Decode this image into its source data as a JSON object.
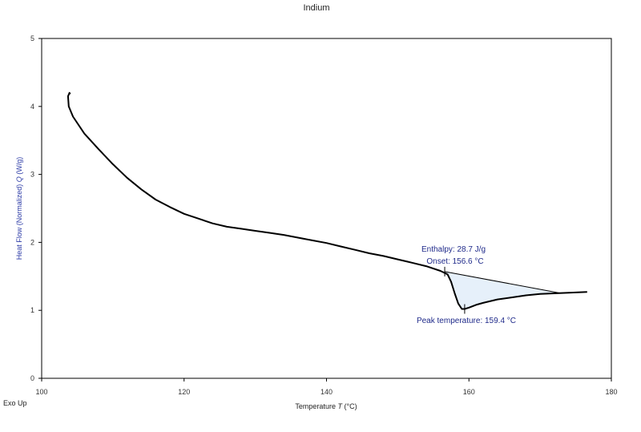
{
  "chart_data": {
    "type": "line",
    "title": "Indium",
    "xlabel": "Temperature",
    "xlabel_symbol": "T",
    "xlabel_unit": "(°C)",
    "ylabel": "Heat Flow (Normalized)",
    "ylabel_symbol": "Q",
    "ylabel_unit": "(W/g)",
    "corner_label": "Exo Up",
    "xlim": [
      100,
      180
    ],
    "ylim": [
      0,
      5
    ],
    "x_ticks": [
      "100",
      "120",
      "140",
      "160",
      "180"
    ],
    "y_ticks": [
      "0",
      "1",
      "2",
      "3",
      "4",
      "5"
    ],
    "grid": false,
    "colors": {
      "curve": "#000000",
      "annotation": "#1f2a8a",
      "fill": "#e6f0fa",
      "ylabel": "#2b3aa6"
    },
    "series": [
      {
        "x": [
          104.0,
          103.9,
          103.7,
          103.8,
          104.4,
          106,
          108,
          110,
          112,
          114,
          116,
          118,
          120,
          122,
          124,
          126,
          128,
          130,
          132,
          134,
          136,
          138,
          140,
          142,
          144,
          146,
          148,
          150,
          152,
          154,
          156,
          157,
          157.5,
          158,
          158.5,
          159,
          159.4,
          160,
          161,
          162,
          164,
          166,
          168,
          170,
          172,
          174,
          176.6
        ],
        "y": [
          4.18,
          4.2,
          4.15,
          4.0,
          3.85,
          3.6,
          3.37,
          3.15,
          2.95,
          2.78,
          2.63,
          2.52,
          2.42,
          2.35,
          2.28,
          2.23,
          2.2,
          2.17,
          2.14,
          2.11,
          2.07,
          2.03,
          1.99,
          1.94,
          1.89,
          1.84,
          1.8,
          1.75,
          1.7,
          1.65,
          1.58,
          1.53,
          1.42,
          1.25,
          1.1,
          1.02,
          1.02,
          1.04,
          1.08,
          1.11,
          1.16,
          1.19,
          1.22,
          1.24,
          1.25,
          1.26,
          1.27
        ]
      }
    ],
    "baseline": {
      "x": [
        156.6,
        173.0
      ],
      "y": [
        1.57,
        1.25
      ]
    },
    "annotations": {
      "enthalpy": "Enthalpy: 28.7 J/g",
      "onset": "Onset: 156.6 °C",
      "peak": "Peak temperature: 159.4 °C"
    }
  }
}
